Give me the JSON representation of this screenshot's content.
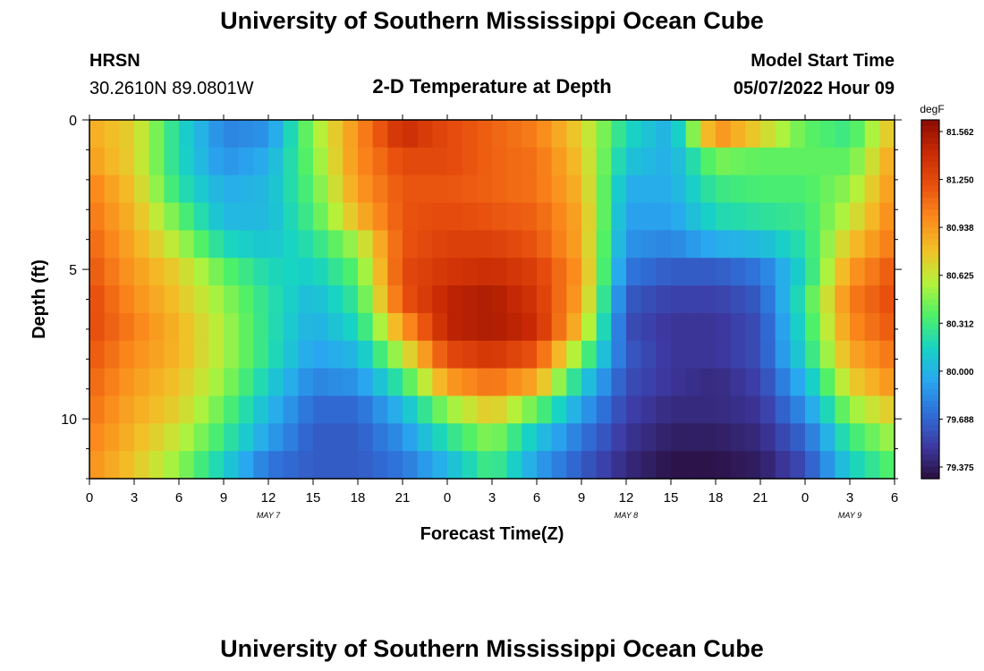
{
  "page": {
    "title": "University of Southern Mississippi Ocean Cube",
    "footer_title": "University of Southern Mississippi Ocean Cube"
  },
  "header": {
    "station": "HRSN",
    "coords": "30.2610N  89.0801W",
    "model_label": "Model Start Time",
    "model_time": "05/07/2022 Hour 09",
    "subtitle": "2-D Temperature at Depth"
  },
  "chart_data": {
    "type": "heatmap",
    "title": "2-D Temperature at Depth",
    "xlabel": "Forecast Time(Z)",
    "ylabel": "Depth (ft)",
    "x_tick_labels": [
      "0",
      "3",
      "6",
      "9",
      "12",
      "15",
      "18",
      "21",
      "0",
      "3",
      "6",
      "9",
      "12",
      "15",
      "18",
      "21",
      "0",
      "3",
      "6"
    ],
    "x_hours": [
      0,
      54
    ],
    "date_labels": [
      {
        "text": "MAY 7",
        "hour": 12
      },
      {
        "text": "MAY 8",
        "hour": 36
      },
      {
        "text": "MAY 9",
        "hour": 51
      }
    ],
    "y_ticks": [
      0,
      5,
      10
    ],
    "ylim": [
      0,
      12
    ],
    "depth_levels_ft": [
      0,
      1,
      2,
      3,
      4,
      5,
      6,
      7,
      8,
      9,
      10,
      11,
      12
    ],
    "colorbar": {
      "unit": "degF",
      "ticks": [
        "81.562",
        "81.250",
        "80.938",
        "80.625",
        "80.312",
        "80.000",
        "79.688",
        "79.375"
      ],
      "vmin": 79.375,
      "vmax": 81.562
    },
    "colormap": [
      "#2a0f3e",
      "#3d3aa3",
      "#2f6fd8",
      "#29a7f0",
      "#17d3c4",
      "#4ef068",
      "#b5f23a",
      "#f2c027",
      "#fb8a1c",
      "#e8500e",
      "#c92a04",
      "#8a0c02"
    ],
    "anchor_hours": [
      0,
      3,
      6,
      9,
      12,
      15,
      18,
      21,
      24,
      27,
      30,
      33,
      36,
      39,
      42,
      45,
      48,
      51,
      54
    ],
    "anchor_values": [
      [
        80.85,
        80.7,
        80.2,
        79.85,
        79.9,
        80.5,
        80.95,
        81.35,
        81.2,
        81.1,
        81.0,
        80.7,
        80.2,
        80.0,
        80.95,
        80.7,
        80.4,
        80.3,
        80.8
      ],
      [
        80.9,
        80.7,
        80.2,
        79.9,
        80.0,
        80.45,
        80.95,
        81.2,
        81.2,
        81.1,
        81.05,
        80.75,
        80.1,
        80.0,
        80.45,
        80.4,
        80.4,
        80.4,
        80.9
      ],
      [
        81.0,
        80.75,
        80.25,
        80.0,
        80.05,
        80.4,
        80.9,
        81.15,
        81.15,
        81.1,
        81.05,
        80.8,
        80.0,
        80.0,
        80.3,
        80.35,
        80.35,
        80.5,
        80.95
      ],
      [
        81.05,
        80.8,
        80.4,
        80.05,
        80.05,
        80.35,
        80.8,
        81.15,
        81.2,
        81.15,
        81.1,
        80.85,
        79.95,
        79.95,
        80.2,
        80.25,
        80.3,
        80.6,
        81.0
      ],
      [
        81.1,
        80.85,
        80.55,
        80.2,
        80.1,
        80.25,
        80.55,
        81.15,
        81.25,
        81.25,
        81.15,
        80.85,
        79.9,
        79.85,
        80.0,
        80.05,
        80.25,
        80.75,
        81.05
      ],
      [
        81.15,
        80.9,
        80.7,
        80.4,
        80.2,
        80.15,
        80.4,
        81.2,
        81.3,
        81.35,
        81.25,
        80.9,
        79.8,
        79.7,
        79.7,
        79.8,
        80.2,
        80.9,
        81.15
      ],
      [
        81.2,
        80.95,
        80.75,
        80.5,
        80.25,
        80.05,
        80.3,
        81.15,
        81.4,
        81.45,
        81.3,
        80.85,
        79.7,
        79.6,
        79.6,
        79.7,
        80.3,
        81.0,
        81.2
      ],
      [
        81.2,
        81.0,
        80.8,
        80.55,
        80.25,
        80.0,
        80.2,
        80.9,
        81.4,
        81.45,
        81.35,
        80.75,
        79.65,
        79.55,
        79.55,
        79.65,
        80.25,
        80.95,
        81.15
      ],
      [
        81.15,
        80.95,
        80.8,
        80.55,
        80.25,
        79.95,
        80.05,
        80.6,
        81.2,
        81.3,
        81.15,
        80.45,
        79.7,
        79.55,
        79.55,
        79.65,
        80.2,
        80.85,
        81.05
      ],
      [
        81.1,
        80.9,
        80.75,
        80.5,
        80.15,
        79.85,
        79.9,
        80.3,
        80.9,
        81.05,
        80.85,
        80.15,
        79.65,
        79.55,
        79.5,
        79.6,
        80.05,
        80.7,
        80.95
      ],
      [
        81.05,
        80.85,
        80.7,
        80.4,
        80.05,
        79.75,
        79.75,
        80.05,
        80.5,
        80.75,
        80.4,
        79.95,
        79.6,
        79.5,
        79.5,
        79.55,
        79.9,
        80.5,
        80.75
      ],
      [
        81.0,
        80.8,
        80.6,
        80.3,
        79.95,
        79.7,
        79.7,
        79.9,
        80.25,
        80.5,
        80.1,
        79.8,
        79.55,
        79.45,
        79.45,
        79.5,
        79.75,
        80.3,
        80.55
      ],
      [
        80.95,
        80.75,
        80.5,
        80.15,
        79.8,
        79.7,
        79.7,
        79.8,
        80.05,
        80.35,
        79.95,
        79.7,
        79.5,
        79.4,
        79.4,
        79.45,
        79.65,
        80.15,
        80.4
      ]
    ]
  }
}
